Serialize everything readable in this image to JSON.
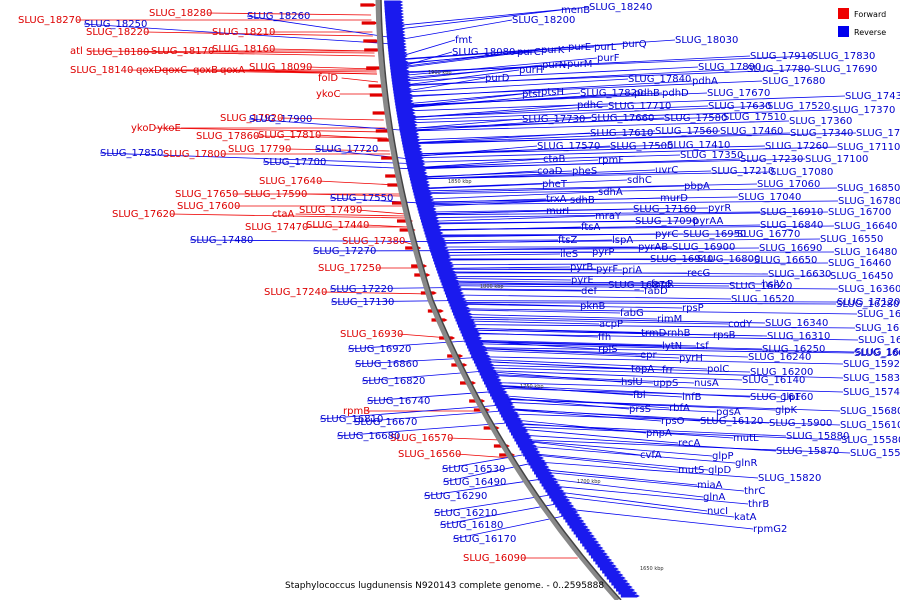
{
  "caption": "Staphylococcus lugdunensis N920143 complete genome. - 0..2595888",
  "legend": [
    {
      "label": "Forward",
      "color": "#ee0000"
    },
    {
      "label": "Reverse",
      "color": "#0000ee"
    }
  ],
  "ticks": [
    "1900 kbp",
    "1850 kbp",
    "1800 kbp",
    "1750 kbp",
    "1700 kbp",
    "1650 kbp"
  ],
  "forward_labels": [
    "SLUG_18270",
    "SLUG_18280",
    "SLUG_18220",
    "SLUG_18210",
    "atl",
    "SLUG_18180",
    "SLUG_18170",
    "SLUG_18160",
    "SLUG_18140",
    "qoxD",
    "qoxC",
    "qoxB",
    "qoxA",
    "SLUG_18090",
    "folD",
    "ykoC",
    "SLUG_17920",
    "ykoD",
    "ykoE",
    "SLUG_17860",
    "SLUG_17810",
    "SLUG_17800",
    "SLUG_17790",
    "SLUG_17640",
    "SLUG_17650",
    "SLUG_17590",
    "SLUG_17620",
    "SLUG_17600",
    "ctaA",
    "SLUG_17490",
    "SLUG_17470",
    "SLUG_17440",
    "SLUG_17380",
    "SLUG_17250",
    "SLUG_17240",
    "SLUG_16930",
    "rpmB",
    "SLUG_16570",
    "SLUG_16560",
    "SLUG_16090"
  ],
  "reverse_labels": [
    "SLUG_18260",
    "SLUG_18250",
    "menB",
    "SLUG_18240",
    "SLUG_18200",
    "fmt",
    "SLUG_18080",
    "purC",
    "purK",
    "purE",
    "purL",
    "purQ",
    "SLUG_18030",
    "purH",
    "purN",
    "purM",
    "purF",
    "SLUG_17910",
    "SLUG_17830",
    "SLUG_17890",
    "SLUG_17780",
    "SLUG_17690",
    "purD",
    "SLUG_17840",
    "pdhA",
    "SLUG_17680",
    "ptsI",
    "ptsH",
    "SLUG_17820",
    "pdhB",
    "pdhD",
    "SLUG_17670",
    "SLUG_17430",
    "pdhC",
    "SLUG_17710",
    "SLUG_17630",
    "SLUG_17520",
    "SLUG_17370",
    "SLUG_17900",
    "SLUG_17730",
    "SLUG_17660",
    "SLUG_17580",
    "SLUG_17510",
    "SLUG_17360",
    "SLUG_17850",
    "SLUG_17720",
    "SLUG_17610",
    "SLUG_17560",
    "SLUG_17460",
    "SLUG_17340",
    "SLUG_17200",
    "SLUG_17700",
    "SLUG_17570",
    "SLUG_17500",
    "SLUG_17410",
    "SLUG_17260",
    "SLUG_17110",
    "ctaB",
    "rpmF",
    "SLUG_17350",
    "SLUG_17230",
    "SLUG_17100",
    "coaD",
    "pheS",
    "uvrC",
    "SLUG_17210",
    "SLUG_17080",
    "pheT",
    "sdhC",
    "SLUG_17060",
    "SLUG_17550",
    "trxA",
    "sdhA",
    "pbpA",
    "SLUG_16850",
    "murI",
    "sdhB",
    "murD",
    "SLUG_17040",
    "SLUG_16780",
    "mraY",
    "SLUG_17160",
    "pyrR",
    "SLUG_16910",
    "SLUG_16700",
    "ftsA",
    "SLUG_17090",
    "pyrAA",
    "SLUG_16840",
    "SLUG_16640",
    "SLUG_17480",
    "ftsZ",
    "lspA",
    "pyrC",
    "SLUG_16950",
    "SLUG_16770",
    "SLUG_16550",
    "ileS",
    "pyrP",
    "pyrAB",
    "SLUG_16900",
    "SLUG_16690",
    "SLUG_16480",
    "SLUG_17270",
    "pyrB",
    "SLUG_16940",
    "SLUG_16800",
    "SLUG_16650",
    "SLUG_16460",
    "pyrF",
    "priA",
    "SLUG_16630",
    "SLUG_16450",
    "SLUG_17220",
    "pyrE",
    "SLUG_16870",
    "fapR",
    "recG",
    "SLUG_16620",
    "SLUG_16360",
    "SLUG_17130",
    "def",
    "fabD",
    "SLUG_16520",
    "SLUG_17120",
    "pknB",
    "rpsP",
    "hslV",
    "SLUG_16280",
    "fabG",
    "rimM",
    "SLUG_16190",
    "acpP",
    "trmD",
    "codY",
    "SLUG_16340",
    "SLUG_16150",
    "rnhB",
    "SLUG_16310",
    "SLUG_16920",
    "ffh",
    "rpsB",
    "SLUG_16050",
    "rplS",
    "lytN",
    "tsf",
    "SLUG_16250",
    "SLUG_16010",
    "SLUG_16860",
    "epr",
    "pyrH",
    "SLUG_16240",
    "SLUG_16000",
    "topA",
    "frr",
    "polC",
    "SLUG_16200",
    "SLUG_15920",
    "SLUG_16820",
    "hslU",
    "uppS",
    "nusA",
    "SLUG_16140",
    "SLUG_15830",
    "SLUG_16740",
    "fbl",
    "infB",
    "SLUG_16160",
    "glpF",
    "SLUG_15740",
    "prsS",
    "rbfA",
    "pgsA",
    "glpK",
    "SLUG_15680",
    "SLUG_16810",
    "SLUG_16670",
    "rpsO",
    "SLUG_16120",
    "SLUG_15900",
    "SLUG_15610",
    "SLUG_16680",
    "pnpA",
    "mutL",
    "SLUG_15880",
    "SLUG_15580",
    "recA",
    "SLUG_15870",
    "SLUG_15570",
    "cvfA",
    "glpP",
    "glnR",
    "SLUG_16530",
    "mutS",
    "glpD",
    "SLUG_16490",
    "miaA",
    "SLUG_15820",
    "glnA",
    "thrC",
    "SLUG_16290",
    "thrB",
    "nucI",
    "katA",
    "SLUG_16210",
    "rpmG2",
    "SLUG_16180",
    "SLUG_16170"
  ]
}
